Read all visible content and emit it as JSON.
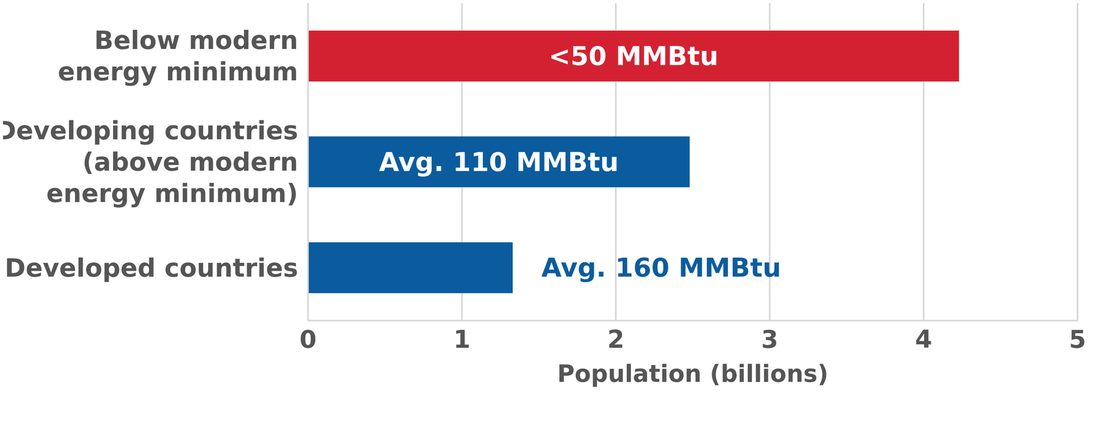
{
  "chart_data": {
    "type": "bar",
    "orientation": "horizontal",
    "categories": [
      "Below modern\nenergy minimum",
      "Developing countries\n(above modern\nenergy minimum)",
      "Developed countries"
    ],
    "values": [
      4.23,
      2.48,
      1.33
    ],
    "annotations": [
      "<50 MMBtu",
      "Avg. 110 MMBtu",
      "Avg. 160 MMBtu"
    ],
    "colors": [
      "#d42131",
      "#0a5c9e",
      "#0a5c9e"
    ],
    "x_label": "Population (billions)",
    "xlim": [
      0,
      5
    ],
    "xticks": [
      0,
      1,
      2,
      3,
      4,
      5
    ],
    "grid": true
  }
}
